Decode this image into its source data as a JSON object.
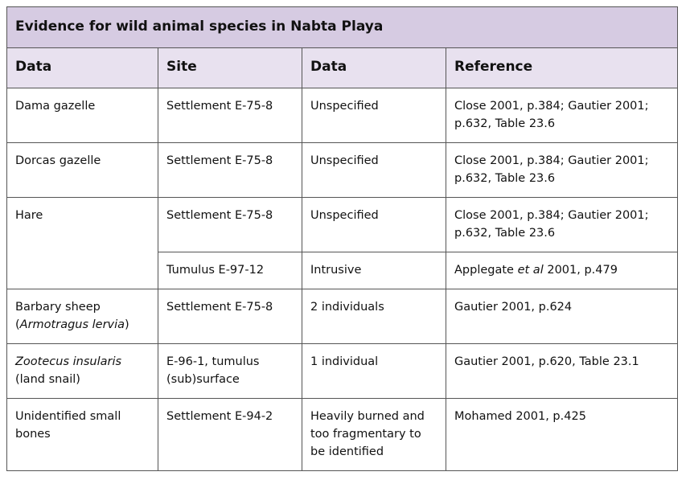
{
  "table": {
    "title": "Evidence for wild animal species in Nabta Playa",
    "header": [
      "Data",
      "Site",
      "Data",
      "Reference"
    ],
    "rows": [
      [
        [
          [
            "Dama gazelle"
          ]
        ],
        [
          [
            "Settlement E-75-8"
          ]
        ],
        [
          [
            "Unspecified"
          ]
        ],
        [
          [
            "Close 2001, p.384; Gautier 2001;"
          ],
          [
            "p.632, Table 23.6"
          ]
        ]
      ],
      [
        [
          [
            "Dorcas gazelle"
          ]
        ],
        [
          [
            "Settlement E-75-8"
          ]
        ],
        [
          [
            "Unspecified"
          ]
        ],
        [
          [
            "Close 2001, p.384; Gautier 2001;"
          ],
          [
            "p.632, Table 23.6"
          ]
        ]
      ],
      [
        [
          [
            "Hare"
          ]
        ],
        [
          [
            "Settlement E-75-8"
          ]
        ],
        [
          [
            "Unspecified"
          ]
        ],
        [
          [
            "Close 2001, p.384; Gautier 2001;"
          ],
          [
            "p.632, Table 23.6"
          ]
        ]
      ],
      [
        [
          [
            "Tumulus E-97-12"
          ]
        ],
        [
          [
            "Intrusive"
          ]
        ],
        [
          [
            "Applegate ",
            {
              "text": "et al",
              "italic": true
            },
            " 2001, p.479"
          ]
        ]
      ],
      [
        [
          [
            "Barbary sheep"
          ],
          [
            "(",
            {
              "text": "Armotragus lervia",
              "italic": true
            },
            ")"
          ]
        ],
        [
          [
            "Settlement E-75-8"
          ]
        ],
        [
          [
            "2 individuals"
          ]
        ],
        [
          [
            "Gautier 2001, p.624"
          ]
        ]
      ],
      [
        [
          [
            {
              "text": "Zootecus insularis",
              "italic": true
            }
          ],
          [
            "(land snail)"
          ]
        ],
        [
          [
            "E-96-1, tumulus"
          ],
          [
            "(sub)surface"
          ]
        ],
        [
          [
            "1 individual"
          ]
        ],
        [
          [
            "Gautier 2001, p.620, Table 23.1"
          ]
        ]
      ],
      [
        [
          [
            "Unidentified small"
          ],
          [
            "bones"
          ]
        ],
        [
          [
            "Settlement E-94-2"
          ]
        ],
        [
          [
            "Heavily burned and"
          ],
          [
            "too fragmentary to"
          ],
          [
            "be identified"
          ]
        ],
        [
          [
            "Mohamed 2001, p.425"
          ]
        ]
      ]
    ]
  }
}
